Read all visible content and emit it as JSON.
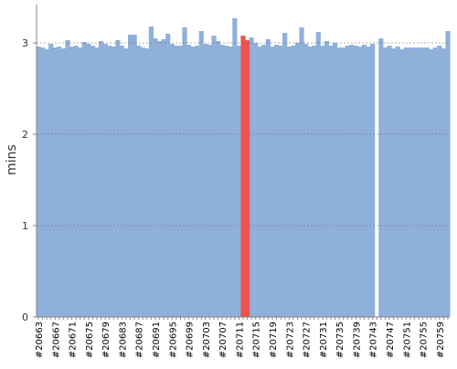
{
  "chart_data": {
    "type": "area",
    "ylabel": "mins",
    "ylim": [
      0,
      3.42
    ],
    "yticks": [
      0,
      1,
      2,
      3
    ],
    "grid": true,
    "categories": [
      "#20663",
      null,
      null,
      null,
      "#20667",
      null,
      null,
      null,
      "#20671",
      null,
      null,
      null,
      "#20675",
      null,
      null,
      null,
      "#20679",
      null,
      null,
      null,
      "#20683",
      null,
      null,
      null,
      "#20687",
      null,
      null,
      null,
      "#20691",
      null,
      null,
      null,
      "#20695",
      null,
      null,
      null,
      "#20699",
      null,
      null,
      null,
      "#20703",
      null,
      null,
      null,
      "#20707",
      null,
      null,
      null,
      "#20711",
      null,
      null,
      null,
      "#20715",
      null,
      null,
      null,
      "#20719",
      null,
      null,
      null,
      "#20723",
      null,
      null,
      null,
      "#20727",
      null,
      null,
      null,
      "#20731",
      null,
      null,
      null,
      "#20735",
      null,
      null,
      null,
      "#20739",
      null,
      null,
      null,
      "#20743",
      null,
      null,
      null,
      "#20747",
      null,
      null,
      null,
      "#20751",
      null,
      null,
      null,
      "#20755",
      null,
      null,
      null,
      "#20759",
      null,
      null
    ],
    "series": [
      {
        "color": "#8fb0da",
        "values": [
          2.96,
          2.95,
          2.93,
          2.99,
          2.95,
          2.96,
          2.94,
          3.03,
          2.96,
          2.97,
          2.95,
          3.01,
          2.99,
          2.97,
          2.95,
          3.02,
          2.99,
          2.97,
          2.96,
          3.03,
          2.97,
          2.94,
          3.09,
          3.09,
          2.97,
          2.95,
          2.94,
          3.18,
          3.05,
          3.02,
          3.04,
          3.1,
          2.99,
          2.97,
          2.97,
          3.17,
          2.98,
          2.96,
          2.97,
          3.13,
          2.99,
          2.98,
          3.08,
          3.02,
          2.98,
          2.97,
          2.96,
          3.27,
          2.97,
          null,
          null,
          3.06,
          3.0,
          2.96,
          2.98,
          3.04,
          2.96,
          2.98,
          2.97,
          3.11,
          2.96,
          2.97,
          3.0,
          3.17,
          2.99,
          2.96,
          2.97,
          3.12,
          2.97,
          3.02,
          2.97,
          3.0,
          2.95,
          2.95,
          2.97,
          2.98,
          2.97,
          2.96,
          2.98,
          2.96,
          2.99,
          null,
          3.05,
          2.95,
          2.97,
          2.94,
          2.96,
          2.93,
          2.95,
          2.95,
          2.95,
          2.95,
          2.95,
          2.95,
          2.93,
          2.95,
          2.97,
          2.94,
          3.13
        ]
      },
      {
        "color": "#ef5350",
        "values": [
          null,
          null,
          null,
          null,
          null,
          null,
          null,
          null,
          null,
          null,
          null,
          null,
          null,
          null,
          null,
          null,
          null,
          null,
          null,
          null,
          null,
          null,
          null,
          null,
          null,
          null,
          null,
          null,
          null,
          null,
          null,
          null,
          null,
          null,
          null,
          null,
          null,
          null,
          null,
          null,
          null,
          null,
          null,
          null,
          null,
          null,
          null,
          null,
          null,
          3.08,
          3.03,
          null,
          null,
          null,
          null,
          null,
          null,
          null,
          null,
          null,
          null,
          null,
          null,
          null,
          null,
          null,
          null,
          null,
          null,
          null,
          null,
          null,
          null,
          null,
          null,
          null,
          null,
          null,
          null,
          null,
          null,
          0,
          null,
          null,
          null,
          null,
          null,
          null,
          null,
          null,
          null,
          null,
          null,
          null,
          null,
          null,
          null,
          null,
          null
        ]
      }
    ]
  }
}
